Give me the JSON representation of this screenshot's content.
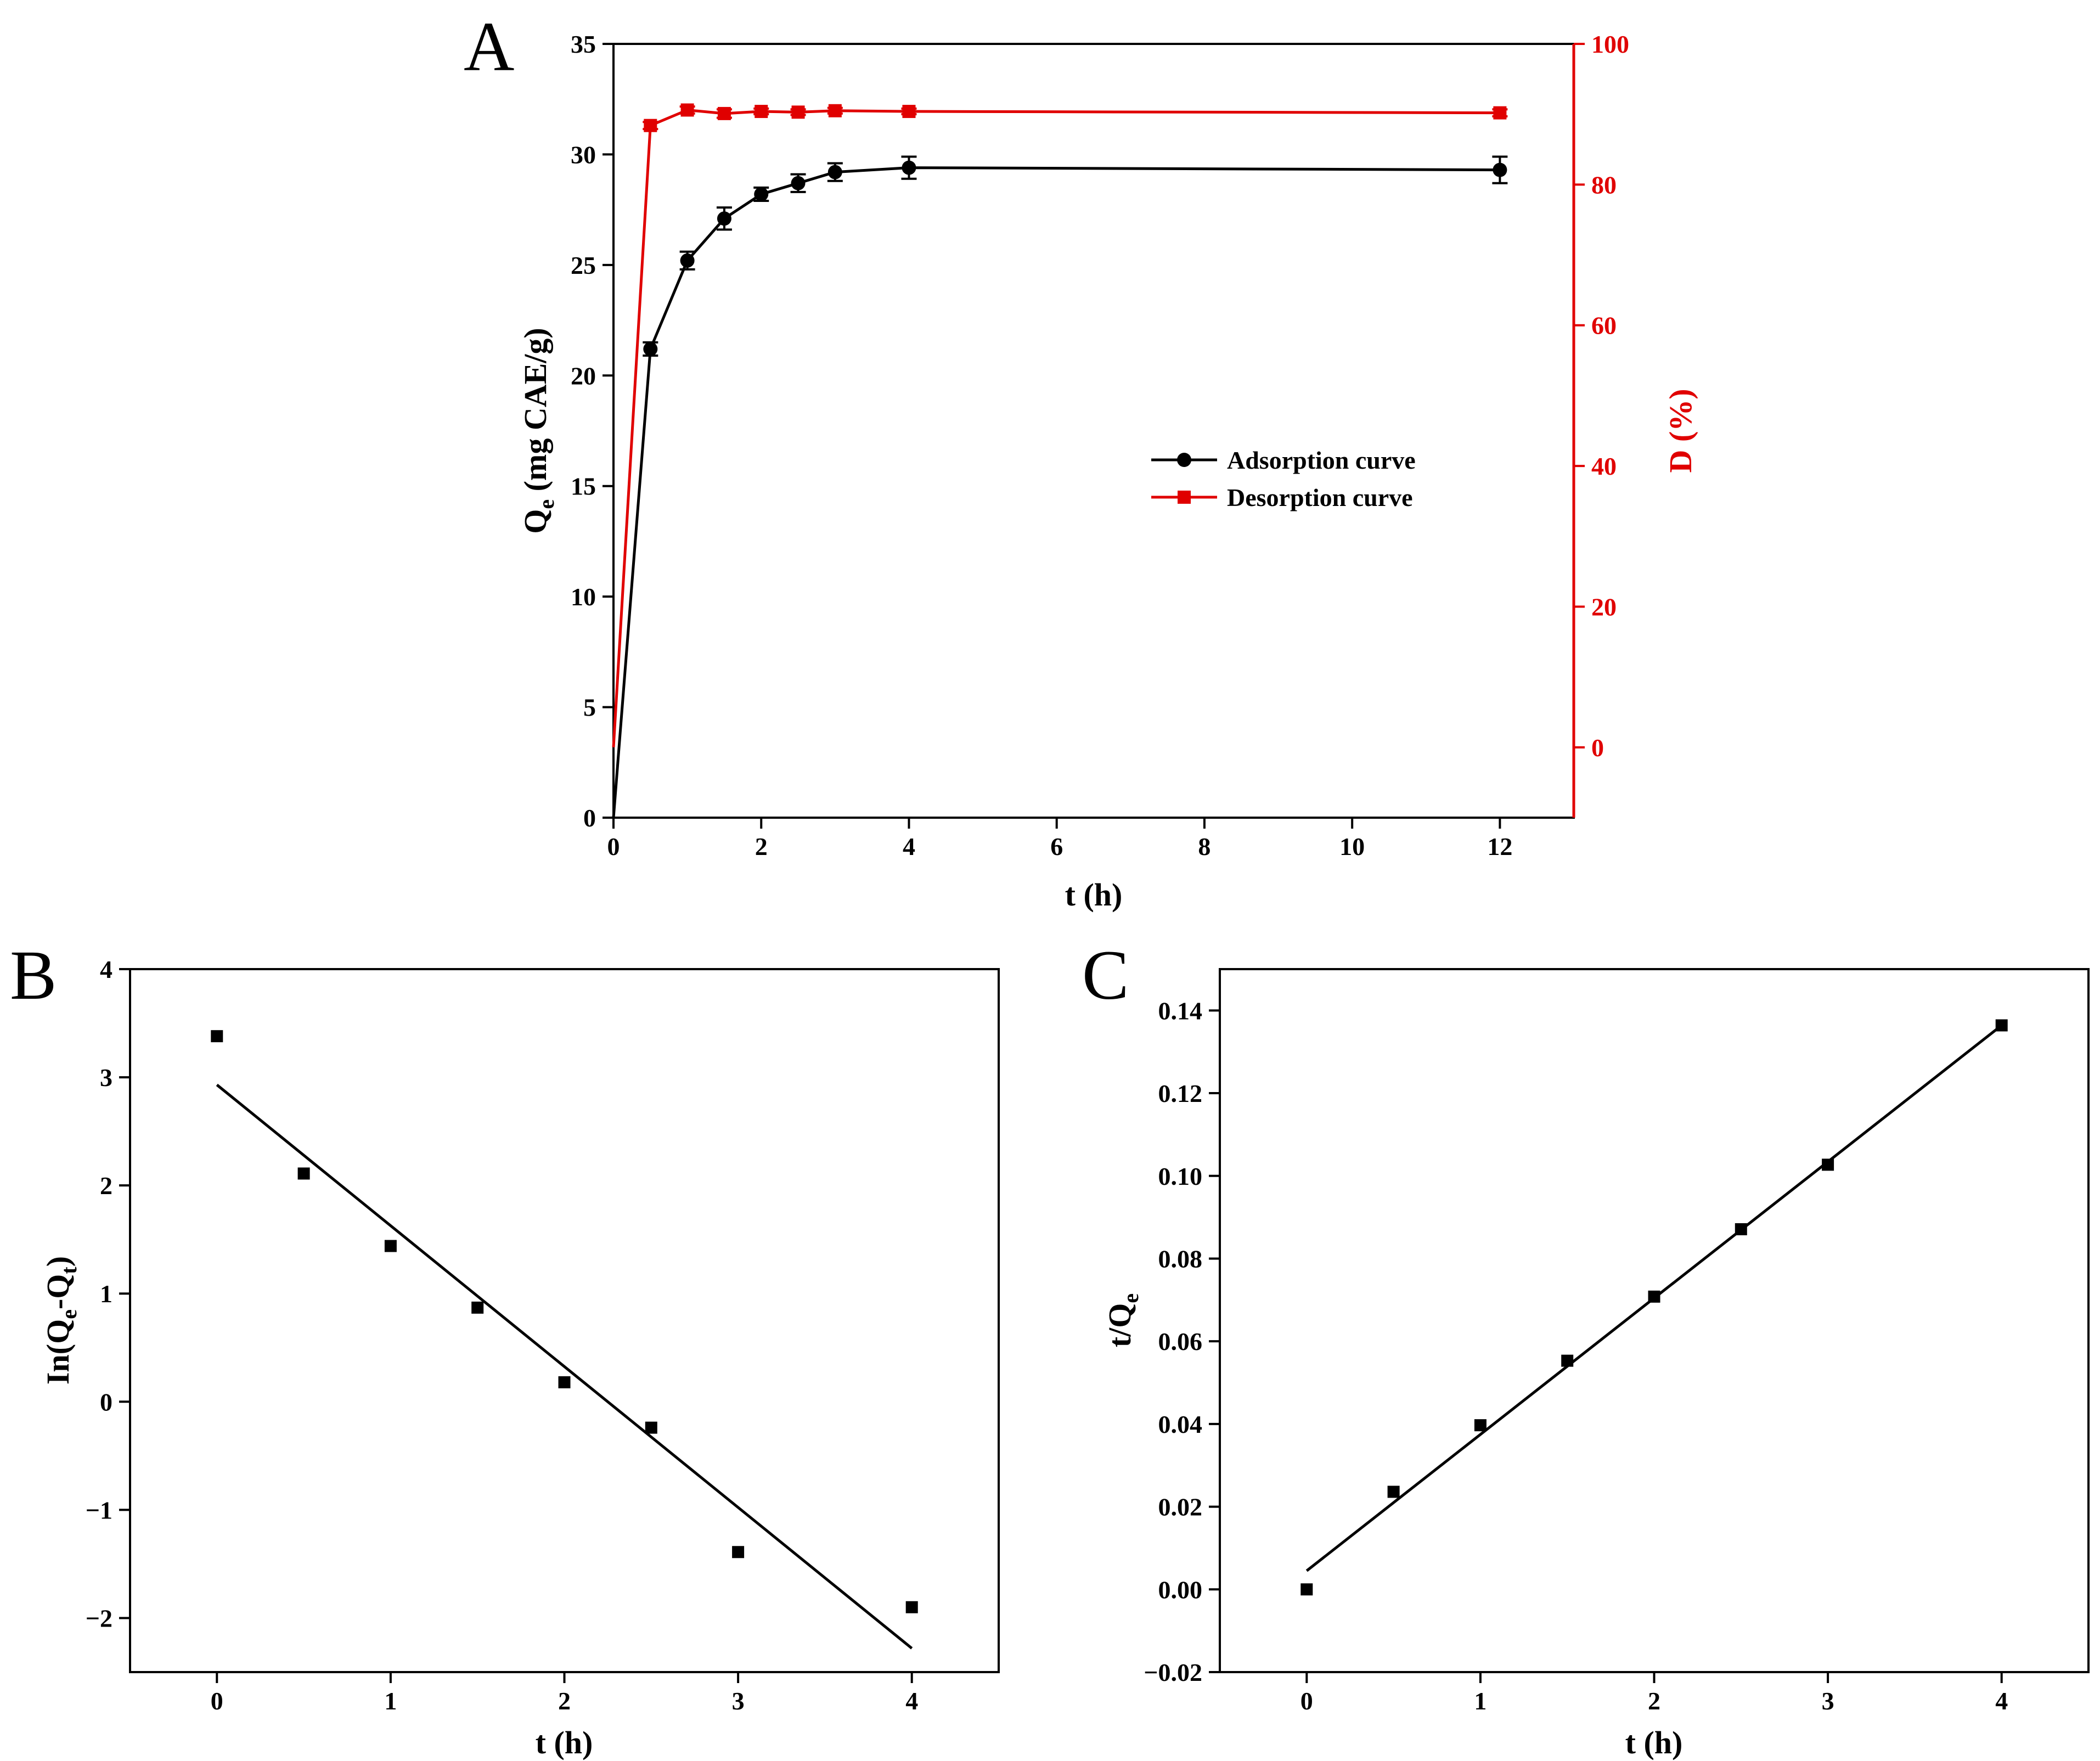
{
  "colors": {
    "adsorption": "#000000",
    "desorption": "#e00000",
    "axis": "#000000"
  },
  "chart_data": [
    {
      "panel": "A",
      "type": "line",
      "xlabel": "t (h)",
      "ylabel": "Qe (mg CAE/g)",
      "ylabel_base": "Q",
      "ylabel_sub": "e",
      "ylabel_rest": " (mg CAE/g)",
      "y2label": "D (%)",
      "xlim": [
        0,
        13
      ],
      "ylim": [
        0,
        35
      ],
      "y2lim": [
        -10,
        100
      ],
      "xticks": [
        0,
        2,
        4,
        6,
        8,
        10,
        12
      ],
      "yticks": [
        0,
        5,
        10,
        15,
        20,
        25,
        30,
        35
      ],
      "y2ticks": [
        0,
        20,
        40,
        60,
        80,
        100
      ],
      "legend_position": "center-right",
      "series": [
        {
          "name": "Adsorption curve",
          "axis": "left",
          "marker": "circle",
          "color": "#000000",
          "x": [
            0,
            0.5,
            1,
            1.5,
            2,
            2.5,
            3,
            4,
            12
          ],
          "y": [
            0,
            21.2,
            25.2,
            27.1,
            28.2,
            28.7,
            29.2,
            29.4,
            29.3
          ],
          "error": [
            0,
            0.3,
            0.4,
            0.5,
            0.3,
            0.4,
            0.4,
            0.5,
            0.6
          ]
        },
        {
          "name": "Desorption curve",
          "axis": "right",
          "marker": "square",
          "color": "#e00000",
          "x": [
            0,
            0.5,
            1,
            1.5,
            2,
            2.5,
            3,
            4,
            12
          ],
          "y": [
            0,
            88.4,
            90.6,
            90.1,
            90.4,
            90.3,
            90.5,
            90.4,
            90.2
          ],
          "error": [
            0,
            0.5,
            0.5,
            0.6,
            0.4,
            0.4,
            0.4,
            0.4,
            0.5
          ]
        }
      ]
    },
    {
      "panel": "B",
      "type": "scatter",
      "xlabel": "t (h)",
      "ylabel": "In(Qe-Qt)",
      "ylabel_parts": [
        "In(Q",
        "e",
        "-Q",
        "t",
        ")"
      ],
      "xlim": [
        -0.5,
        4.5
      ],
      "ylim": [
        -2.5,
        4
      ],
      "xticks": [
        0,
        1,
        2,
        3,
        4
      ],
      "yticks": [
        -2,
        -1,
        0,
        1,
        2,
        3,
        4
      ],
      "ytick_labels": [
        "−2",
        "−1",
        "0",
        "1",
        "2",
        "3",
        "4"
      ],
      "points": {
        "x": [
          0,
          0.5,
          1,
          1.5,
          2,
          2.5,
          3,
          4
        ],
        "y": [
          3.38,
          2.11,
          1.44,
          0.87,
          0.18,
          -0.24,
          -1.39,
          -1.9
        ]
      },
      "fit_line": {
        "x": [
          0,
          4
        ],
        "y": [
          2.93,
          -2.28
        ]
      }
    },
    {
      "panel": "C",
      "type": "scatter",
      "xlabel": "t (h)",
      "ylabel": "t/Qe",
      "ylabel_parts": [
        "t/Q",
        "e"
      ],
      "xlim": [
        -0.5,
        4.5
      ],
      "ylim": [
        -0.02,
        0.15
      ],
      "xticks": [
        0,
        1,
        2,
        3,
        4
      ],
      "yticks": [
        -0.02,
        0,
        0.02,
        0.04,
        0.06,
        0.08,
        0.1,
        0.12,
        0.14
      ],
      "ytick_labels": [
        "−0.02",
        "0.00",
        "0.02",
        "0.04",
        "0.06",
        "0.08",
        "0.10",
        "0.12",
        "0.14"
      ],
      "points": {
        "x": [
          0,
          0.5,
          1,
          1.5,
          2,
          2.5,
          3,
          4
        ],
        "y": [
          0.0,
          0.0236,
          0.0397,
          0.0553,
          0.0708,
          0.0871,
          0.1027,
          0.1364
        ]
      },
      "fit_line": {
        "x": [
          0,
          4
        ],
        "y": [
          0.0045,
          0.1364
        ]
      }
    }
  ]
}
